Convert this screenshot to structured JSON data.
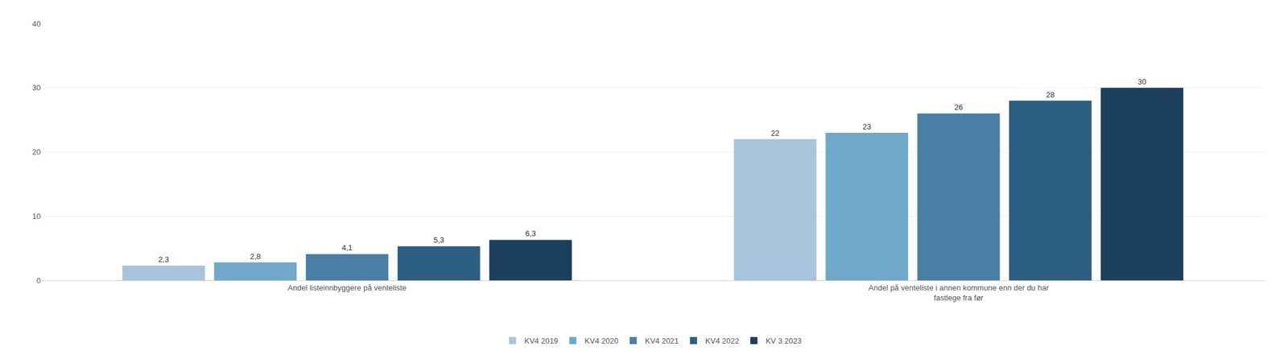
{
  "chart_data": {
    "type": "bar",
    "categories": [
      "Andel listeinnbyggere på venteliste",
      "Andel på venteliste i annen kommune enn der du har\nfastlege fra før"
    ],
    "series": [
      {
        "name": "KV4 2019",
        "color": "#a8c4dd",
        "values": [
          2.3,
          22
        ],
        "value_labels": [
          "2,3",
          "22"
        ]
      },
      {
        "name": "KV4 2020",
        "color": "#6fa8c8",
        "values": [
          2.8,
          23
        ],
        "value_labels": [
          "2,8",
          "23"
        ]
      },
      {
        "name": "KV4 2021",
        "color": "#4a7fa5",
        "values": [
          4.1,
          26
        ],
        "value_labels": [
          "4,1",
          "26"
        ]
      },
      {
        "name": "KV4 2022",
        "color": "#2d5f82",
        "values": [
          5.3,
          28
        ],
        "value_labels": [
          "5,3",
          "28"
        ]
      },
      {
        "name": "KV 3 2023",
        "color": "#1c3f5e",
        "values": [
          6.3,
          30
        ],
        "value_labels": [
          "6,3",
          "30"
        ]
      }
    ],
    "ylim": [
      0,
      40
    ],
    "yticks": [
      0,
      10,
      20,
      30,
      40
    ],
    "grid": true,
    "legend": "bottom",
    "data_labels": true
  }
}
